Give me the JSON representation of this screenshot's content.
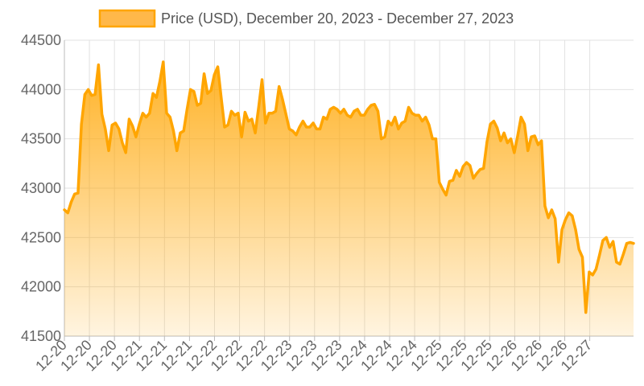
{
  "chart_data": {
    "type": "area",
    "legend": {
      "label": "Price (USD), December 20, 2023 - December 27, 2023",
      "position": "top"
    },
    "ylim": [
      41500,
      44500
    ],
    "y_ticks": [
      41500,
      42000,
      42500,
      43000,
      43500,
      44000,
      44500
    ],
    "grid": true,
    "x_tick_labels": [
      "12-20",
      "12-20",
      "12-20",
      "12-21",
      "12-21",
      "12-21",
      "12-22",
      "12-22",
      "12-22",
      "12-23",
      "12-23",
      "12-23",
      "12-24",
      "12-24",
      "12-24",
      "12-25",
      "12-25",
      "12-25",
      "12-26",
      "12-26",
      "12-26",
      "12-27"
    ],
    "series": [
      {
        "color": "#ffa500",
        "values": [
          42780,
          42750,
          42860,
          42940,
          42950,
          43650,
          43950,
          44000,
          43940,
          43950,
          44250,
          43750,
          43600,
          43380,
          43640,
          43660,
          43600,
          43460,
          43360,
          43700,
          43630,
          43520,
          43650,
          43760,
          43720,
          43760,
          43960,
          43920,
          44080,
          44280,
          43760,
          43720,
          43580,
          43380,
          43560,
          43580,
          43800,
          44000,
          43980,
          43840,
          43860,
          44160,
          43960,
          43990,
          44150,
          44230,
          43920,
          43620,
          43640,
          43780,
          43740,
          43760,
          43520,
          43770,
          43680,
          43700,
          43560,
          43820,
          44100,
          43660,
          43760,
          43760,
          43780,
          44030,
          43900,
          43750,
          43600,
          43580,
          43540,
          43620,
          43680,
          43620,
          43620,
          43660,
          43600,
          43600,
          43720,
          43700,
          43800,
          43820,
          43800,
          43760,
          43800,
          43740,
          43720,
          43780,
          43800,
          43740,
          43740,
          43800,
          43840,
          43850,
          43780,
          43500,
          43520,
          43680,
          43640,
          43720,
          43600,
          43660,
          43680,
          43820,
          43760,
          43740,
          43740,
          43680,
          43720,
          43640,
          43500,
          43500,
          43060,
          42990,
          42930,
          43070,
          43080,
          43180,
          43120,
          43220,
          43260,
          43230,
          43100,
          43150,
          43190,
          43200,
          43470,
          43650,
          43680,
          43610,
          43480,
          43560,
          43460,
          43500,
          43360,
          43530,
          43720,
          43650,
          43380,
          43520,
          43530,
          43440,
          43480,
          42820,
          42700,
          42780,
          42690,
          42250,
          42580,
          42680,
          42750,
          42720,
          42580,
          42380,
          42300,
          41740,
          42150,
          42120,
          42180,
          42320,
          42470,
          42500,
          42400,
          42460,
          42250,
          42230,
          42330,
          42440,
          42450,
          42440
        ]
      }
    ]
  }
}
